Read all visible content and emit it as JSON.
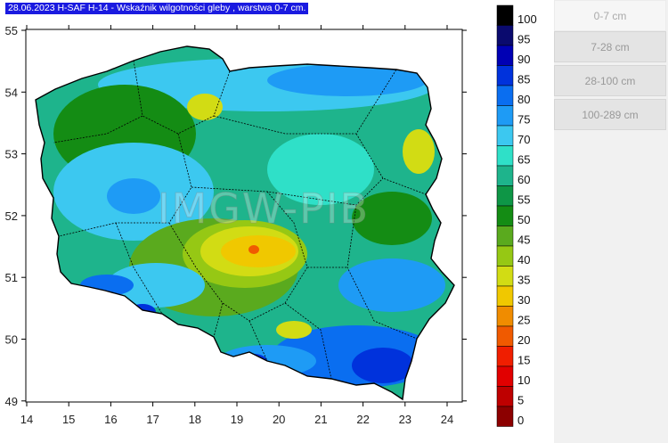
{
  "title": "28.06.2023 H-SAF H-14 - Wskaźnik wilgotności gleby , warstwa 0-7 cm.",
  "watermark": "IMGW-PIB",
  "map": {
    "lon_ticks": [
      "14",
      "15",
      "16",
      "17",
      "18",
      "19",
      "20",
      "21",
      "22",
      "23",
      "24"
    ],
    "lat_ticks": [
      "55",
      "54",
      "53",
      "52",
      "51",
      "50",
      "49"
    ]
  },
  "legend": {
    "labels": [
      "100",
      "95",
      "90",
      "85",
      "80",
      "75",
      "70",
      "65",
      "60",
      "55",
      "50",
      "45",
      "40",
      "35",
      "30",
      "25",
      "20",
      "15",
      "10",
      "5",
      "0"
    ],
    "colors": [
      "#000000",
      "#0a0a6e",
      "#0000b4",
      "#0032dc",
      "#0a6ef0",
      "#1e9bf5",
      "#3cc8f0",
      "#2fe0c8",
      "#1eb48c",
      "#0e9646",
      "#148c14",
      "#5aaa1e",
      "#96c814",
      "#d2dc14",
      "#f0c800",
      "#f08c00",
      "#f05a00",
      "#f01e00",
      "#e10000",
      "#be0000",
      "#8c0000"
    ]
  },
  "tabs": [
    {
      "label": "0-7 cm",
      "active": true
    },
    {
      "label": "7-28 cm",
      "active": false
    },
    {
      "label": "28-100 cm",
      "active": false
    },
    {
      "label": "100-289 cm",
      "active": false
    }
  ],
  "regions": [
    {
      "name": "north-coast",
      "color": "#3cc8f0"
    },
    {
      "name": "central-dry",
      "color": "#f0c800"
    },
    {
      "name": "south-east-wet",
      "color": "#0a6ef0"
    }
  ]
}
